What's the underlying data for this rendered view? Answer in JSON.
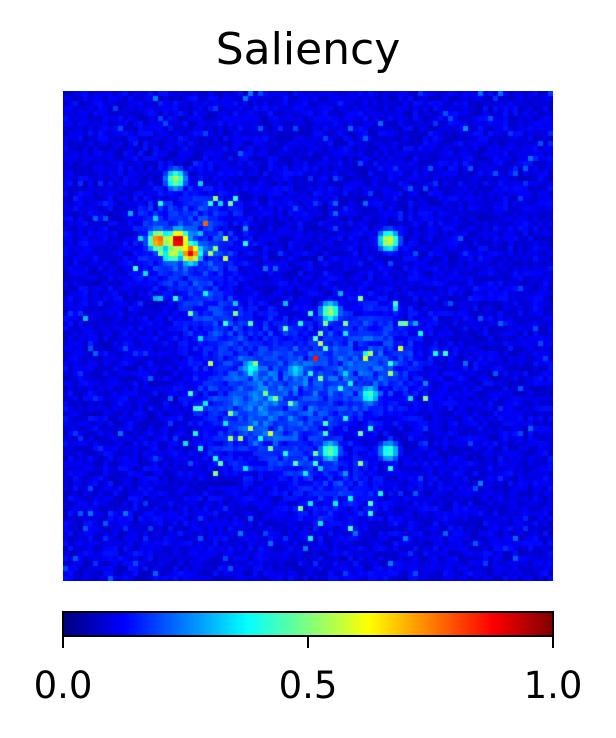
{
  "chart_data": {
    "type": "heatmap",
    "title": "Saliency",
    "colormap": "jet",
    "colormap_stops": [
      "#00007f",
      "#0000ff",
      "#007fff",
      "#00ffff",
      "#7fff7f",
      "#ffff00",
      "#ff7f00",
      "#ff0000",
      "#7f0000"
    ],
    "value_range": [
      0.0,
      1.0
    ],
    "colorbar": {
      "orientation": "horizontal",
      "placement": "bottom",
      "ticks": [
        0.0,
        0.5,
        1.0
      ],
      "tick_labels": [
        "0.0",
        "0.5",
        "1.0"
      ]
    },
    "axes_visible": false,
    "hotspots": [
      {
        "x": 0.23,
        "y": 0.3,
        "value": 1.0
      },
      {
        "x": 0.255,
        "y": 0.325,
        "value": 0.9
      },
      {
        "x": 0.19,
        "y": 0.3,
        "value": 0.82
      },
      {
        "x": 0.22,
        "y": 0.325,
        "value": 0.6
      },
      {
        "x": 0.225,
        "y": 0.175,
        "value": 0.55
      },
      {
        "x": 0.66,
        "y": 0.3,
        "value": 0.62
      },
      {
        "x": 0.54,
        "y": 0.445,
        "value": 0.55
      },
      {
        "x": 0.54,
        "y": 0.73,
        "value": 0.5
      },
      {
        "x": 0.66,
        "y": 0.73,
        "value": 0.45
      },
      {
        "x": 0.62,
        "y": 0.615,
        "value": 0.45
      },
      {
        "x": 0.38,
        "y": 0.56,
        "value": 0.4
      },
      {
        "x": 0.47,
        "y": 0.565,
        "value": 0.35
      }
    ]
  }
}
